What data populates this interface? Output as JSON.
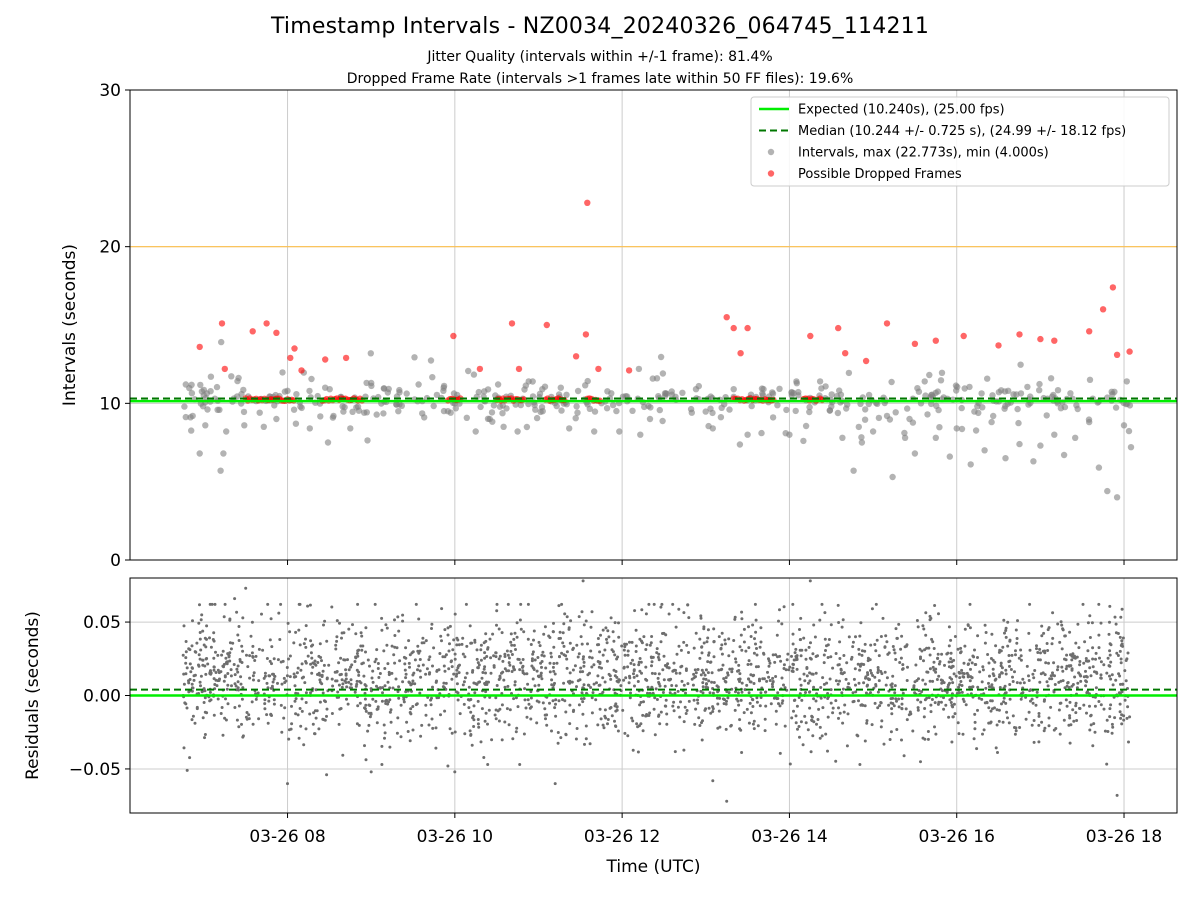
{
  "title": "Timestamp Intervals - NZ0034_20240326_064745_114211",
  "subtitle1": "Jitter Quality (intervals within +/-1 frame): 81.4%",
  "subtitle2": "Dropped Frame Rate (intervals >1 frames late within 50 FF files): 19.6%",
  "colors": {
    "expected": "#00ee00",
    "median": "#007700",
    "intervals": "#808080",
    "dropped": "#ff0000",
    "threshold": "#ffc04d",
    "grid": "#cccccc"
  },
  "chart_data": [
    {
      "type": "scatter",
      "ylabel": "Intervals (seconds)",
      "ylim": [
        0,
        30
      ],
      "yticks": [
        0,
        10,
        20,
        30
      ],
      "xlim": [
        "2024-03-26 06:07",
        "2024-03-26 18:38"
      ],
      "grid": true,
      "legend_position": "top-right",
      "legend": [
        {
          "label": "Expected (10.240s), (25.00 fps)",
          "kind": "line-solid"
        },
        {
          "label": "Median (10.244 +/- 0.725 s), (24.99 +/- 18.12 fps)",
          "kind": "line-dashed"
        },
        {
          "label": "Intervals, max (22.773s), min (4.000s)",
          "kind": "marker-gray"
        },
        {
          "label": "Possible Dropped Frames",
          "kind": "marker-red"
        }
      ],
      "reference_lines": [
        {
          "name": "Expected",
          "y": 10.24
        },
        {
          "name": "Median",
          "y": 10.244
        },
        {
          "name": "Threshold",
          "y": 20.0
        }
      ],
      "series": [
        {
          "name": "Intervals",
          "points": [
            [
              "2024-03-26 06:47",
              11.2
            ],
            [
              "2024-03-26 06:52",
              9.2
            ],
            [
              "2024-03-26 06:57",
              6.8
            ],
            [
              "2024-03-26 07:01",
              8.6
            ],
            [
              "2024-03-26 07:05",
              11.7
            ],
            [
              "2024-03-26 07:12",
              5.7
            ],
            [
              "2024-03-26 07:14",
              6.8
            ],
            [
              "2024-03-26 07:16",
              8.2
            ],
            [
              "2024-03-26 07:29",
              8.6
            ],
            [
              "2024-03-26 07:40",
              9.4
            ],
            [
              "2024-03-26 07:43",
              8.5
            ],
            [
              "2024-03-26 07:52",
              9.0
            ],
            [
              "2024-03-26 08:00",
              10.8
            ],
            [
              "2024-03-26 08:06",
              8.7
            ],
            [
              "2024-03-26 08:16",
              8.4
            ],
            [
              "2024-03-26 08:27",
              11.0
            ],
            [
              "2024-03-26 08:33",
              9.2
            ],
            [
              "2024-03-26 08:45",
              8.4
            ],
            [
              "2024-03-26 08:55",
              9.4
            ],
            [
              "2024-03-26 09:00",
              11.3
            ],
            [
              "2024-03-26 09:05",
              10.4
            ],
            [
              "2024-03-26 09:34",
              11.2
            ],
            [
              "2024-03-26 09:38",
              9.1
            ],
            [
              "2024-03-26 09:52",
              11.0
            ],
            [
              "2024-03-26 09:55",
              9.5
            ],
            [
              "2024-03-26 10:00",
              10.0
            ],
            [
              "2024-03-26 10:15",
              8.2
            ],
            [
              "2024-03-26 10:25",
              9.0
            ],
            [
              "2024-03-26 10:31",
              11.2
            ],
            [
              "2024-03-26 10:35",
              8.5
            ],
            [
              "2024-03-26 10:45",
              8.2
            ],
            [
              "2024-03-26 10:53",
              11.4
            ],
            [
              "2024-03-26 11:03",
              9.5
            ],
            [
              "2024-03-26 11:16",
              11.0
            ],
            [
              "2024-03-26 11:22",
              8.4
            ],
            [
              "2024-03-26 11:28",
              9.4
            ],
            [
              "2024-03-26 11:40",
              8.2
            ],
            [
              "2024-03-26 11:58",
              8.2
            ],
            [
              "2024-03-26 12:12",
              12.2
            ],
            [
              "2024-03-26 12:13",
              8.0
            ],
            [
              "2024-03-26 12:20",
              9.0
            ],
            [
              "2024-03-26 12:25",
              11.6
            ],
            [
              "2024-03-26 12:50",
              9.4
            ],
            [
              "2024-03-26 12:55",
              11.1
            ],
            [
              "2024-03-26 13:05",
              8.4
            ],
            [
              "2024-03-26 13:17",
              9.6
            ],
            [
              "2024-03-26 13:20",
              10.9
            ],
            [
              "2024-03-26 13:30",
              8.0
            ],
            [
              "2024-03-26 13:40",
              8.1
            ],
            [
              "2024-03-26 14:00",
              8.0
            ],
            [
              "2024-03-26 14:05",
              11.4
            ],
            [
              "2024-03-26 14:10",
              7.6
            ],
            [
              "2024-03-26 14:22",
              11.4
            ],
            [
              "2024-03-26 14:30",
              9.8
            ],
            [
              "2024-03-26 14:38",
              7.8
            ],
            [
              "2024-03-26 14:46",
              5.7
            ],
            [
              "2024-03-26 14:52",
              7.5
            ],
            [
              "2024-03-26 15:00",
              8.2
            ],
            [
              "2024-03-26 15:10",
              9.2
            ],
            [
              "2024-03-26 15:14",
              5.3
            ],
            [
              "2024-03-26 15:23",
              7.8
            ],
            [
              "2024-03-26 15:30",
              6.8
            ],
            [
              "2024-03-26 15:37",
              11.4
            ],
            [
              "2024-03-26 15:45",
              7.8
            ],
            [
              "2024-03-26 15:55",
              6.6
            ],
            [
              "2024-03-26 16:00",
              8.4
            ],
            [
              "2024-03-26 16:10",
              6.1
            ],
            [
              "2024-03-26 16:20",
              7.0
            ],
            [
              "2024-03-26 16:25",
              8.8
            ],
            [
              "2024-03-26 16:35",
              6.5
            ],
            [
              "2024-03-26 16:45",
              7.4
            ],
            [
              "2024-03-26 16:55",
              6.3
            ],
            [
              "2024-03-26 17:00",
              7.3
            ],
            [
              "2024-03-26 17:10",
              8.0
            ],
            [
              "2024-03-26 17:17",
              6.7
            ],
            [
              "2024-03-26 17:25",
              7.8
            ],
            [
              "2024-03-26 17:35",
              8.8
            ],
            [
              "2024-03-26 17:42",
              5.9
            ],
            [
              "2024-03-26 17:48",
              4.4
            ],
            [
              "2024-03-26 17:55",
              4.0
            ],
            [
              "2024-03-26 18:00",
              8.6
            ],
            [
              "2024-03-26 18:02",
              11.4
            ],
            [
              "2024-03-26 18:05",
              7.2
            ]
          ]
        },
        {
          "name": "Possible Dropped Frames",
          "points": [
            [
              "2024-03-26 06:57",
              13.6
            ],
            [
              "2024-03-26 07:13",
              15.1
            ],
            [
              "2024-03-26 07:15",
              12.2
            ],
            [
              "2024-03-26 07:35",
              14.6
            ],
            [
              "2024-03-26 07:45",
              15.1
            ],
            [
              "2024-03-26 07:52",
              14.5
            ],
            [
              "2024-03-26 08:02",
              12.9
            ],
            [
              "2024-03-26 08:05",
              13.5
            ],
            [
              "2024-03-26 08:10",
              12.1
            ],
            [
              "2024-03-26 08:27",
              12.8
            ],
            [
              "2024-03-26 08:42",
              12.9
            ],
            [
              "2024-03-26 09:59",
              14.3
            ],
            [
              "2024-03-26 10:18",
              12.2
            ],
            [
              "2024-03-26 10:41",
              15.1
            ],
            [
              "2024-03-26 10:46",
              12.2
            ],
            [
              "2024-03-26 11:06",
              15.0
            ],
            [
              "2024-03-26 11:27",
              13.0
            ],
            [
              "2024-03-26 11:34",
              14.4
            ],
            [
              "2024-03-26 11:35",
              22.8
            ],
            [
              "2024-03-26 11:43",
              12.2
            ],
            [
              "2024-03-26 12:05",
              12.1
            ],
            [
              "2024-03-26 13:15",
              15.5
            ],
            [
              "2024-03-26 13:20",
              14.8
            ],
            [
              "2024-03-26 13:25",
              13.2
            ],
            [
              "2024-03-26 13:30",
              14.8
            ],
            [
              "2024-03-26 14:15",
              14.3
            ],
            [
              "2024-03-26 14:35",
              14.8
            ],
            [
              "2024-03-26 14:40",
              13.2
            ],
            [
              "2024-03-26 14:55",
              12.7
            ],
            [
              "2024-03-26 15:10",
              15.1
            ],
            [
              "2024-03-26 15:30",
              13.8
            ],
            [
              "2024-03-26 15:45",
              14.0
            ],
            [
              "2024-03-26 16:05",
              14.3
            ],
            [
              "2024-03-26 16:30",
              13.7
            ],
            [
              "2024-03-26 16:45",
              14.4
            ],
            [
              "2024-03-26 17:00",
              14.1
            ],
            [
              "2024-03-26 17:10",
              14.0
            ],
            [
              "2024-03-26 17:35",
              14.6
            ],
            [
              "2024-03-26 17:45",
              16.0
            ],
            [
              "2024-03-26 17:52",
              17.4
            ],
            [
              "2024-03-26 17:55",
              13.1
            ],
            [
              "2024-03-26 18:04",
              13.3
            ]
          ]
        }
      ],
      "dense_dropped_clusters": [
        [
          "2024-03-26 07:30",
          "2024-03-26 08:05"
        ],
        [
          "2024-03-26 08:25",
          "2024-03-26 08:55"
        ],
        [
          "2024-03-26 09:55",
          "2024-03-26 10:05"
        ],
        [
          "2024-03-26 10:30",
          "2024-03-26 10:50"
        ],
        [
          "2024-03-26 11:05",
          "2024-03-26 11:20"
        ],
        [
          "2024-03-26 11:35",
          "2024-03-26 11:45"
        ],
        [
          "2024-03-26 13:20",
          "2024-03-26 13:50"
        ],
        [
          "2024-03-26 14:10",
          "2024-03-26 14:25"
        ]
      ]
    },
    {
      "type": "scatter",
      "xlabel": "Time (UTC)",
      "ylabel": "Residuals (seconds)",
      "ylim": [
        -0.08,
        0.08
      ],
      "yticks": [
        -0.05,
        0.0,
        0.05
      ],
      "ytick_labels": [
        "−0.05",
        "0.00",
        "0.05"
      ],
      "xticks": [
        "2024-03-26 08:00",
        "2024-03-26 10:00",
        "2024-03-26 12:00",
        "2024-03-26 14:00",
        "2024-03-26 16:00",
        "2024-03-26 18:00"
      ],
      "xtick_labels": [
        "03-26 08",
        "03-26 10",
        "03-26 12",
        "03-26 14",
        "03-26 16",
        "03-26 18"
      ],
      "grid": true,
      "reference_lines": [
        {
          "name": "Zero",
          "y": 0.0
        },
        {
          "name": "Median offset",
          "y": 0.004
        }
      ],
      "series": [
        {
          "name": "Residuals",
          "points": [
            [
              "2024-03-26 06:48",
              -0.051
            ],
            [
              "2024-03-26 07:22",
              0.066
            ],
            [
              "2024-03-26 07:30",
              0.073
            ],
            [
              "2024-03-26 08:00",
              -0.06
            ],
            [
              "2024-03-26 08:28",
              -0.054
            ],
            [
              "2024-03-26 09:00",
              -0.052
            ],
            [
              "2024-03-26 09:55",
              -0.048
            ],
            [
              "2024-03-26 10:00",
              -0.052
            ],
            [
              "2024-03-26 11:12",
              -0.06
            ],
            [
              "2024-03-26 11:32",
              0.078
            ],
            [
              "2024-03-26 12:05",
              0.082
            ],
            [
              "2024-03-26 12:55",
              0.082
            ],
            [
              "2024-03-26 13:05",
              -0.058
            ],
            [
              "2024-03-26 13:15",
              -0.072
            ],
            [
              "2024-03-26 14:15",
              0.078
            ],
            [
              "2024-03-26 14:45",
              -0.082
            ],
            [
              "2024-03-26 17:55",
              -0.068
            ]
          ]
        }
      ],
      "bulk_spread": {
        "start": "2024-03-26 06:45",
        "end": "2024-03-26 18:05",
        "center": 0.012,
        "sd": 0.021
      }
    }
  ]
}
